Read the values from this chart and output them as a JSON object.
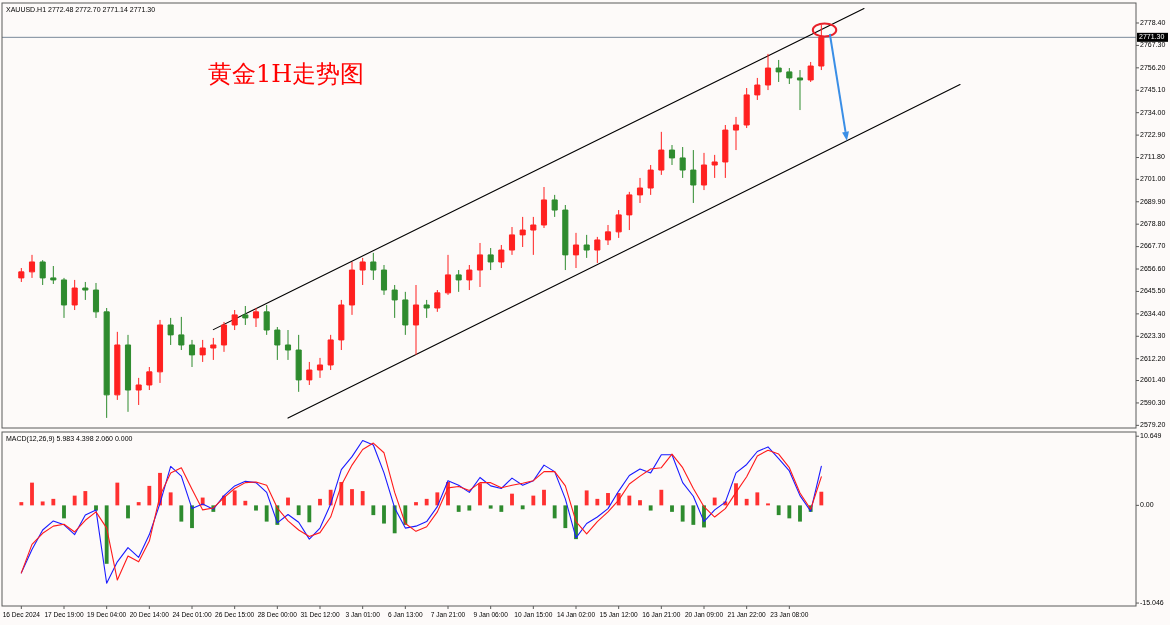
{
  "chart_data": [
    {
      "type": "candlestick",
      "title": "黄金1H走势图",
      "subtitle": "XAUUSD.H1 2772.48 2772.70 2771.14 2771.30",
      "categories": [
        null,
        null,
        null,
        null,
        null,
        null,
        null,
        null,
        null,
        null,
        null,
        null,
        null,
        null,
        null,
        null,
        null,
        null,
        null,
        null,
        null,
        null,
        null,
        null,
        null,
        null,
        null,
        null,
        null,
        null,
        null,
        null,
        null,
        null,
        null,
        null,
        null,
        null,
        null,
        null,
        null,
        null,
        null,
        null,
        null,
        null,
        null,
        null,
        null,
        null,
        null,
        null,
        null,
        null,
        null,
        null,
        null,
        null,
        null,
        null,
        null,
        null,
        null,
        null,
        null,
        null,
        null,
        null,
        null,
        null,
        null,
        null,
        null,
        null,
        null,
        null,
        null,
        null,
        null,
        null,
        null,
        null,
        null,
        null,
        null,
        null,
        null,
        null,
        null,
        null,
        null,
        null,
        null,
        null,
        null,
        null,
        null,
        null,
        null,
        null,
        null,
        null,
        null,
        null,
        null
      ],
      "ohlc": [
        [
          2652.2,
          2657.1,
          2650.2,
          2655.2
        ],
        [
          2655.2,
          2663.6,
          2652.2,
          2660.1
        ],
        [
          2660.1,
          2661.0,
          2648.7,
          2652.2
        ],
        [
          2652.2,
          2658.1,
          2649.2,
          2651.2
        ],
        [
          2651.2,
          2652.2,
          2632.4,
          2638.8
        ],
        [
          2638.8,
          2651.2,
          2636.3,
          2647.2
        ],
        [
          2647.2,
          2650.2,
          2641.3,
          2646.2
        ],
        [
          2646.2,
          2649.7,
          2632.4,
          2635.4
        ],
        [
          2635.4,
          2637.3,
          2582.9,
          2594.3
        ],
        [
          2594.3,
          2625.5,
          2591.8,
          2619.0
        ],
        [
          2619.0,
          2624.0,
          2585.9,
          2596.7
        ],
        [
          2596.7,
          2602.7,
          2589.3,
          2599.2
        ],
        [
          2599.2,
          2608.1,
          2596.7,
          2605.7
        ],
        [
          2605.7,
          2631.4,
          2600.2,
          2628.9
        ],
        [
          2628.9,
          2632.4,
          2619.0,
          2624.0
        ],
        [
          2624.0,
          2632.9,
          2616.5,
          2619.0
        ],
        [
          2619.0,
          2621.5,
          2608.1,
          2614.1
        ],
        [
          2614.1,
          2621.5,
          2610.6,
          2617.5
        ],
        [
          2617.5,
          2622.5,
          2611.6,
          2619.0
        ],
        [
          2619.0,
          2630.4,
          2615.6,
          2628.9
        ],
        [
          2628.9,
          2636.3,
          2626.4,
          2633.9
        ],
        [
          2633.9,
          2638.3,
          2628.9,
          2632.4
        ],
        [
          2632.4,
          2637.3,
          2627.9,
          2635.4
        ],
        [
          2635.4,
          2638.8,
          2624.0,
          2626.4
        ],
        [
          2626.4,
          2627.9,
          2611.6,
          2619.0
        ],
        [
          2619.0,
          2626.4,
          2611.6,
          2616.5
        ],
        [
          2616.5,
          2624.0,
          2595.8,
          2601.7
        ],
        [
          2601.7,
          2610.6,
          2599.2,
          2606.6
        ],
        [
          2606.6,
          2612.6,
          2602.7,
          2609.1
        ],
        [
          2609.1,
          2624.0,
          2606.6,
          2621.5
        ],
        [
          2621.5,
          2641.3,
          2616.5,
          2638.8
        ],
        [
          2638.8,
          2660.1,
          2633.9,
          2656.1
        ],
        [
          2656.1,
          2662.1,
          2648.7,
          2660.1
        ],
        [
          2660.1,
          2664.6,
          2651.2,
          2656.1
        ],
        [
          2656.1,
          2658.6,
          2643.8,
          2646.2
        ],
        [
          2646.2,
          2648.7,
          2632.4,
          2641.3
        ],
        [
          2641.3,
          2645.3,
          2624.0,
          2628.9
        ],
        [
          2628.9,
          2648.7,
          2614.1,
          2638.8
        ],
        [
          2638.8,
          2641.3,
          2632.4,
          2637.3
        ],
        [
          2637.3,
          2646.2,
          2635.4,
          2644.8
        ],
        [
          2644.8,
          2663.6,
          2643.8,
          2653.7
        ],
        [
          2653.7,
          2656.1,
          2645.3,
          2651.2
        ],
        [
          2651.2,
          2658.6,
          2646.2,
          2656.1
        ],
        [
          2656.1,
          2669.5,
          2647.7,
          2663.6
        ],
        [
          2663.6,
          2667.0,
          2656.1,
          2660.1
        ],
        [
          2660.1,
          2668.5,
          2657.1,
          2666.0
        ],
        [
          2666.0,
          2677.4,
          2663.6,
          2673.5
        ],
        [
          2673.5,
          2682.4,
          2667.5,
          2675.9
        ],
        [
          2675.9,
          2682.4,
          2663.6,
          2678.4
        ],
        [
          2678.4,
          2697.2,
          2676.9,
          2690.8
        ],
        [
          2690.8,
          2693.3,
          2682.4,
          2685.8
        ],
        [
          2685.8,
          2688.3,
          2656.1,
          2663.6
        ],
        [
          2663.6,
          2674.5,
          2657.1,
          2668.5
        ],
        [
          2668.5,
          2673.5,
          2662.1,
          2666.0
        ],
        [
          2666.0,
          2672.5,
          2659.6,
          2671.0
        ],
        [
          2671.0,
          2678.4,
          2668.5,
          2675.0
        ],
        [
          2675.0,
          2685.8,
          2672.0,
          2683.4
        ],
        [
          2683.4,
          2694.8,
          2675.9,
          2693.3
        ],
        [
          2693.3,
          2701.7,
          2689.3,
          2696.7
        ],
        [
          2696.7,
          2708.1,
          2693.3,
          2705.6
        ],
        [
          2705.6,
          2724.5,
          2703.2,
          2715.5
        ],
        [
          2715.5,
          2718.0,
          2708.1,
          2711.6
        ],
        [
          2711.6,
          2717.0,
          2701.7,
          2705.6
        ],
        [
          2705.6,
          2715.5,
          2689.3,
          2698.2
        ],
        [
          2698.2,
          2714.1,
          2695.7,
          2708.1
        ],
        [
          2708.1,
          2713.1,
          2701.7,
          2709.6
        ],
        [
          2709.6,
          2727.9,
          2701.7,
          2725.4
        ],
        [
          2725.4,
          2731.9,
          2715.5,
          2727.9
        ],
        [
          2727.9,
          2746.2,
          2726.4,
          2742.8
        ],
        [
          2742.8,
          2751.2,
          2740.3,
          2747.7
        ],
        [
          2747.7,
          2763.1,
          2745.2,
          2756.1
        ],
        [
          2756.1,
          2760.1,
          2749.2,
          2754.2
        ],
        [
          2754.2,
          2756.1,
          2748.2,
          2751.2
        ],
        [
          2751.2,
          2755.1,
          2735.3,
          2750.2
        ],
        [
          2750.2,
          2759.1,
          2749.2,
          2757.1
        ],
        [
          2757.1,
          2777.4,
          2755.1,
          2771.3
        ],
        null,
        null,
        null,
        null,
        null,
        null,
        null,
        null,
        null,
        null,
        null,
        null,
        null,
        null,
        null,
        null,
        null,
        null,
        null,
        null,
        null,
        null,
        null,
        null,
        null,
        null,
        null,
        null,
        null
      ],
      "colors": [
        "#ff2020",
        "#ff2020",
        "#2e8b2e",
        "#2e8b2e",
        "#2e8b2e",
        "#ff2020",
        "#2e8b2e",
        "#2e8b2e",
        "#2e8b2e",
        "#ff2020",
        "#2e8b2e",
        "#ff2020",
        "#ff2020",
        "#ff2020",
        "#2e8b2e",
        "#2e8b2e",
        "#2e8b2e",
        "#ff2020",
        "#ff2020",
        "#ff2020",
        "#ff2020",
        "#2e8b2e",
        "#ff2020",
        "#2e8b2e",
        "#2e8b2e",
        "#2e8b2e",
        "#2e8b2e",
        "#ff2020",
        "#ff2020",
        "#ff2020",
        "#ff2020",
        "#ff2020",
        "#ff2020",
        "#2e8b2e",
        "#2e8b2e",
        "#2e8b2e",
        "#2e8b2e",
        "#ff2020",
        "#2e8b2e",
        "#ff2020",
        "#ff2020",
        "#2e8b2e",
        "#ff2020",
        "#ff2020",
        "#2e8b2e",
        "#ff2020",
        "#ff2020",
        "#ff2020",
        "#ff2020",
        "#ff2020",
        "#2e8b2e",
        "#2e8b2e",
        "#ff2020",
        "#2e8b2e",
        "#ff2020",
        "#ff2020",
        "#ff2020",
        "#ff2020",
        "#ff2020",
        "#ff2020",
        "#ff2020",
        "#2e8b2e",
        "#2e8b2e",
        "#2e8b2e",
        "#ff2020",
        "#ff2020",
        "#ff2020",
        "#ff2020",
        "#ff2020",
        "#ff2020",
        "#ff2020",
        "#2e8b2e",
        "#2e8b2e",
        "#2e8b2e",
        "#ff2020",
        "#ff2020",
        null,
        null,
        null,
        null,
        null,
        null,
        null,
        null,
        null,
        null,
        null,
        null,
        null,
        null,
        null,
        null,
        null,
        null,
        null,
        null,
        null,
        null,
        null,
        null,
        null,
        null,
        null,
        null,
        null
      ],
      "series": [
        {
          "type": "line",
          "color": "#000000",
          "values": [
            null,
            null,
            null,
            null,
            null,
            null,
            null,
            null,
            null,
            null,
            null,
            null,
            null,
            null,
            null,
            null,
            null,
            null,
            2626.6,
            null,
            null,
            null,
            null,
            null,
            null,
            null,
            null,
            null,
            null,
            null,
            null,
            null,
            null,
            null,
            null,
            null,
            null,
            null,
            null,
            null,
            null,
            null,
            null,
            null,
            null,
            null,
            null,
            null,
            null,
            null,
            null,
            null,
            null,
            null,
            null,
            null,
            null,
            null,
            null,
            null,
            null,
            null,
            null,
            null,
            null,
            null,
            null,
            null,
            null,
            null,
            null,
            null,
            null,
            null,
            null,
            null,
            null,
            null,
            null,
            2785.6,
            null,
            null,
            null,
            null,
            null,
            null,
            null,
            null,
            null,
            null,
            null,
            null,
            null,
            null,
            null,
            null,
            null,
            null,
            null,
            null,
            null,
            null,
            null,
            null,
            null
          ]
        },
        {
          "type": "line",
          "color": "#000000",
          "values": [
            null,
            null,
            null,
            null,
            null,
            null,
            null,
            null,
            null,
            null,
            null,
            null,
            null,
            null,
            null,
            null,
            null,
            null,
            null,
            null,
            null,
            null,
            null,
            null,
            null,
            2582.8,
            null,
            null,
            null,
            null,
            null,
            null,
            null,
            null,
            null,
            null,
            null,
            null,
            null,
            null,
            null,
            null,
            null,
            null,
            null,
            null,
            null,
            null,
            null,
            null,
            null,
            null,
            null,
            null,
            null,
            null,
            null,
            null,
            null,
            null,
            null,
            null,
            null,
            null,
            null,
            null,
            null,
            null,
            null,
            null,
            null,
            null,
            null,
            null,
            null,
            null,
            null,
            null,
            null,
            null,
            null,
            null,
            null,
            null,
            null,
            null,
            null,
            null,
            2747.9,
            null,
            null,
            null,
            null,
            null,
            null,
            null,
            null,
            null,
            null,
            null,
            null,
            null,
            null,
            null,
            null
          ]
        }
      ],
      "ylim": [
        2577.9,
        2788.3
      ],
      "yticks": [
        {
          "value": 2778.4,
          "label": "2778.40"
        },
        {
          "value": 2767.3,
          "label": "2767.30"
        },
        {
          "value": 2756.2,
          "label": "2756.20"
        },
        {
          "value": 2745.1,
          "label": "2745.10"
        },
        {
          "value": 2734,
          "label": "2734.00"
        },
        {
          "value": 2722.9,
          "label": "2722.90"
        },
        {
          "value": 2711.8,
          "label": "2711.80"
        },
        {
          "value": 2701,
          "label": "2701.00"
        },
        {
          "value": 2689.9,
          "label": "2689.90"
        },
        {
          "value": 2678.8,
          "label": "2678.80"
        },
        {
          "value": 2667.7,
          "label": "2667.70"
        },
        {
          "value": 2656.6,
          "label": "2656.60"
        },
        {
          "value": 2645.5,
          "label": "2645.50"
        },
        {
          "value": 2634.4,
          "label": "2634.40"
        },
        {
          "value": 2623.3,
          "label": "2623.30"
        },
        {
          "value": 2612.2,
          "label": "2612.20"
        },
        {
          "value": 2601.4,
          "label": "2601.40"
        },
        {
          "value": 2590.3,
          "label": "2590.30"
        },
        {
          "value": 2579.2,
          "label": "2579.20"
        }
      ],
      "ref_lines": [
        {
          "axis": "y",
          "value": 2771.3,
          "label": "2771.30",
          "color": "#7a8a9a"
        }
      ]
    },
    {
      "type": "bar",
      "title": "MACD(12,26,9) 5.983 4.398 2.060 0.000",
      "categories": [
        "16 Dec 2024",
        null,
        null,
        null,
        "17 Dec 19:00",
        null,
        null,
        null,
        "19 Dec 04:00",
        null,
        null,
        null,
        "20 Dec 14:00",
        null,
        null,
        null,
        "24 Dec 01:00",
        null,
        null,
        null,
        "26 Dec 15:00",
        null,
        null,
        null,
        "28 Dec 00:00",
        null,
        null,
        null,
        "31 Dec 12:00",
        null,
        null,
        null,
        "3 Jan 01:00",
        null,
        null,
        null,
        "6 Jan 13:00",
        null,
        null,
        null,
        "7 Jan 21:00",
        null,
        null,
        null,
        "9 Jan 06:00",
        null,
        null,
        null,
        "10 Jan 15:00",
        null,
        null,
        null,
        "14 Jan 02:00",
        null,
        null,
        null,
        "15 Jan 12:00",
        null,
        null,
        null,
        "16 Jan 21:00",
        null,
        null,
        null,
        "20 Jan 09:00",
        null,
        null,
        null,
        "21 Jan 22:00",
        null,
        null,
        null,
        "23 Jan 08:00",
        null,
        null,
        null,
        null,
        null,
        null,
        null,
        null,
        null,
        null,
        null,
        null,
        null,
        null,
        null,
        null,
        null,
        null,
        null,
        null,
        null,
        null,
        null,
        null,
        null,
        null,
        null,
        null,
        null,
        null,
        null,
        null
      ],
      "series": [
        {
          "type": "bar",
          "colors": [
            "#ff3030",
            "#ff3030",
            "#ff3030",
            "#ff3030",
            "#2e8b2e",
            "#ff3030",
            "#ff3030",
            "#2e8b2e",
            "#2e8b2e",
            "#ff3030",
            "#2e8b2e",
            "#ff3030",
            "#ff3030",
            "#ff3030",
            "#ff3030",
            "#2e8b2e",
            "#2e8b2e",
            "#ff3030",
            "#2e8b2e",
            "#ff3030",
            "#ff3030",
            "#ff3030",
            "#2e8b2e",
            "#2e8b2e",
            "#2e8b2e",
            "#ff3030",
            "#2e8b2e",
            "#2e8b2e",
            "#ff3030",
            "#ff3030",
            "#ff3030",
            "#ff3030",
            "#ff3030",
            "#2e8b2e",
            "#2e8b2e",
            "#2e8b2e",
            "#2e8b2e",
            "#ff3030",
            "#ff3030",
            "#ff3030",
            "#ff3030",
            "#2e8b2e",
            "#2e8b2e",
            "#ff3030",
            "#2e8b2e",
            "#2e8b2e",
            "#ff3030",
            "#2e8b2e",
            "#ff3030",
            "#ff3030",
            "#2e8b2e",
            "#2e8b2e",
            "#2e8b2e",
            "#ff3030",
            "#ff3030",
            "#ff3030",
            "#ff3030",
            "#ff3030",
            "#ff3030",
            "#2e8b2e",
            "#ff3030",
            "#2e8b2e",
            "#2e8b2e",
            "#2e8b2e",
            "#2e8b2e",
            "#ff3030",
            "#ff3030",
            "#ff3030",
            "#ff3030",
            "#ff3030",
            "#ff3030",
            "#2e8b2e",
            "#2e8b2e",
            "#2e8b2e",
            "#2e8b2e",
            "#ff3030",
            null,
            null,
            null,
            null,
            null,
            null,
            null,
            null,
            null,
            null,
            null,
            null,
            null,
            null,
            null,
            null,
            null,
            null,
            null,
            null,
            null,
            null,
            null,
            null,
            null,
            null,
            null,
            null,
            null
          ],
          "values": [
            0.5,
            3.5,
            0.6,
            1.0,
            -2.0,
            1.5,
            2.2,
            -0.8,
            -9.0,
            3.5,
            -2.0,
            0.5,
            3.0,
            5.0,
            2.0,
            -2.5,
            -3.5,
            1.2,
            -1.0,
            1.5,
            2.3,
            0.7,
            -0.8,
            -2.5,
            -3.0,
            1.2,
            -1.5,
            -2.6,
            1.0,
            2.4,
            3.6,
            2.5,
            2.2,
            -1.5,
            -2.8,
            -4.3,
            -3.0,
            0.5,
            1.0,
            2.0,
            3.6,
            -1.0,
            -0.8,
            3.4,
            -0.5,
            -1.0,
            1.8,
            -0.6,
            1.5,
            2.4,
            -2.0,
            -3.5,
            -5.2,
            2.3,
            1.0,
            1.9,
            1.9,
            1.5,
            0.8,
            -0.8,
            2.4,
            -1.0,
            -2.5,
            -3.0,
            -3.4,
            1.2,
            0.6,
            3.4,
            1.0,
            2.0,
            0.3,
            -1.5,
            -2.0,
            -2.5,
            -1.0,
            2.1,
            null,
            null,
            null,
            null,
            null,
            null,
            null,
            null,
            null,
            null,
            null,
            null,
            null,
            null,
            null,
            null,
            null,
            null,
            null,
            null,
            null,
            null,
            null,
            null,
            null,
            null,
            null,
            null,
            null
          ]
        },
        {
          "type": "line",
          "color": "#1a1aff",
          "values": [
            -10.4,
            -6.8,
            -3.8,
            -2.4,
            -3.0,
            -4.5,
            -1.5,
            -0.7,
            -12.0,
            -8.7,
            -6.5,
            -8.0,
            -4.5,
            0.3,
            6.0,
            4.5,
            -0.5,
            0.2,
            -0.6,
            1.5,
            3.0,
            3.7,
            3.5,
            2.0,
            -2.7,
            -1.4,
            -2.6,
            -5.2,
            -3.5,
            0.2,
            5.5,
            7.5,
            10.0,
            9.3,
            5.0,
            -0.4,
            -3.5,
            -3.2,
            -2.5,
            -0.2,
            3.8,
            3.1,
            2.0,
            4.3,
            3.0,
            2.6,
            4.2,
            3.1,
            3.8,
            6.2,
            5.2,
            1.0,
            -5.0,
            -2.8,
            -1.8,
            -0.5,
            2.2,
            4.6,
            5.6,
            5.0,
            7.8,
            7.8,
            3.5,
            1.4,
            -2.5,
            -0.7,
            0.5,
            5.0,
            6.3,
            8.3,
            9.0,
            7.2,
            5.3,
            1.5,
            -0.9,
            6.0,
            null,
            null,
            null,
            null,
            null,
            null,
            null,
            null,
            null,
            null,
            null,
            null,
            null,
            null,
            null,
            null,
            null,
            null,
            null,
            null,
            null,
            null,
            null,
            null,
            null,
            null,
            null,
            null,
            null
          ]
        },
        {
          "type": "line",
          "color": "#ff1a1a",
          "values": [
            -10.4,
            -6.0,
            -4.3,
            -3.2,
            -2.9,
            -4.1,
            -2.3,
            -1.0,
            -3.5,
            -11.5,
            -7.8,
            -8.7,
            -5.5,
            1.5,
            5.0,
            5.8,
            2.5,
            -0.7,
            -0.4,
            1.2,
            2.6,
            3.5,
            3.6,
            3.1,
            -0.4,
            -2.4,
            -3.8,
            -4.8,
            -4.2,
            -1.8,
            3.1,
            6.2,
            8.6,
            9.6,
            8.1,
            2.0,
            -2.8,
            -4.0,
            -3.3,
            -1.0,
            2.7,
            2.9,
            2.3,
            3.5,
            3.5,
            2.7,
            3.1,
            3.4,
            3.8,
            5.2,
            5.2,
            3.0,
            -2.5,
            -4.4,
            -2.5,
            -1.0,
            0.8,
            3.3,
            4.5,
            5.6,
            5.8,
            7.9,
            5.8,
            2.6,
            -0.2,
            -1.8,
            -0.5,
            2.0,
            4.4,
            7.6,
            8.5,
            7.9,
            5.8,
            1.9,
            -0.6,
            4.4,
            null,
            null,
            null,
            null,
            null,
            null,
            null,
            null,
            null,
            null,
            null,
            null,
            null,
            null,
            null,
            null,
            null,
            null,
            null,
            null,
            null,
            null,
            null,
            null,
            null,
            null,
            null,
            null,
            null
          ]
        }
      ],
      "ylim": [
        -15.5,
        11.3
      ],
      "yticks": [
        {
          "value": 10.649,
          "label": "10.649"
        },
        {
          "value": 0,
          "label": "0.00"
        },
        {
          "value": -15.046,
          "label": "-15.046"
        }
      ]
    }
  ]
}
